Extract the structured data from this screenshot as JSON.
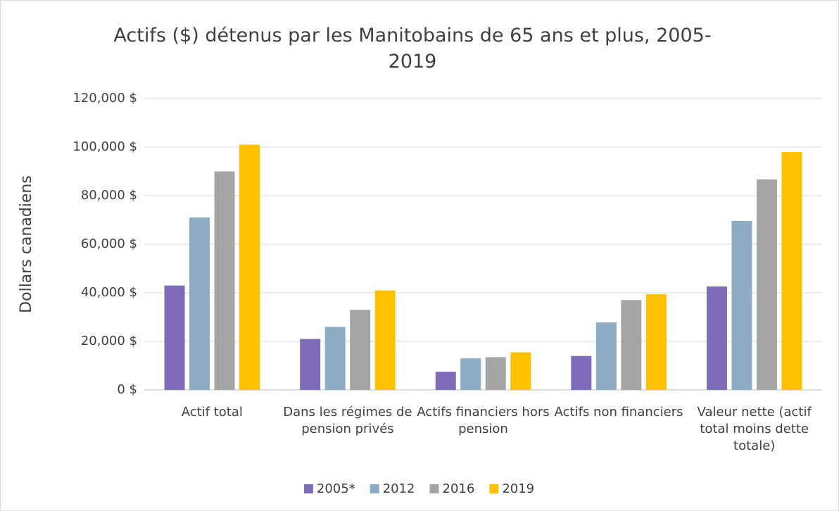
{
  "chart_data": {
    "type": "bar",
    "title": "Actifs ($) détenus par les Manitobains de 65 ans et plus, 2005-2019",
    "y_label": "Dollars canadiens",
    "categories": [
      "Actif total",
      "Dans les régimes de pension privés",
      "Actifs financiers hors pension",
      "Actifs non financiers",
      "Valeur nette (actif total moins dette totale)"
    ],
    "series": [
      {
        "name": "2005*",
        "color": "#7f6cb8",
        "values": [
          43000,
          21000,
          7500,
          14000,
          42600
        ]
      },
      {
        "name": "2012",
        "color": "#8eacc4",
        "values": [
          71000,
          26000,
          13000,
          27800,
          69600
        ]
      },
      {
        "name": "2016",
        "color": "#a5a5a5",
        "values": [
          90000,
          33000,
          13500,
          37000,
          86700
        ]
      },
      {
        "name": "2019",
        "color": "#ffc000",
        "values": [
          101000,
          41000,
          15500,
          39400,
          98000
        ]
      }
    ],
    "ylim": [
      0,
      120000
    ],
    "yticks": [
      {
        "value": 0,
        "label": "0 $"
      },
      {
        "value": 20000,
        "label": "20,000 $"
      },
      {
        "value": 40000,
        "label": "40,000 $"
      },
      {
        "value": 60000,
        "label": "60,000 $"
      },
      {
        "value": 80000,
        "label": "80,000 $"
      },
      {
        "value": 100000,
        "label": "100,000 $"
      },
      {
        "value": 120000,
        "label": "120,000 $"
      }
    ],
    "grid": true,
    "legend": "bottom"
  }
}
